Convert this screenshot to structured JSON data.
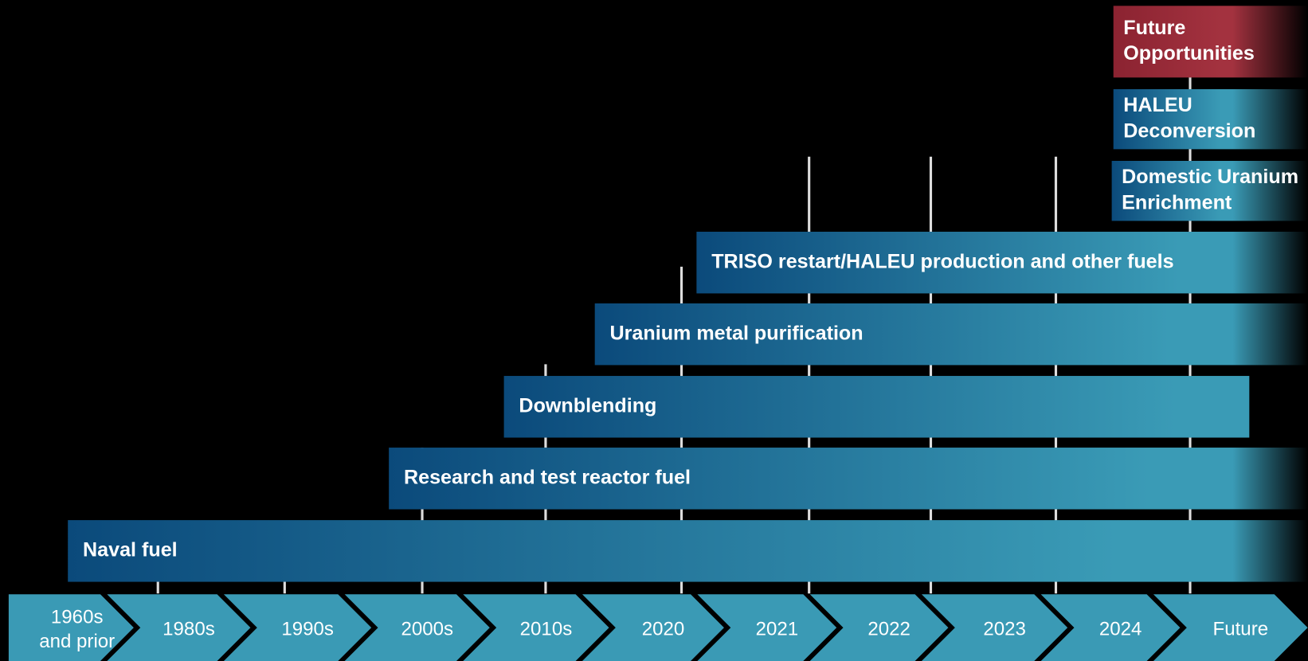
{
  "periods": [
    [
      "1960s",
      "and prior"
    ],
    [
      "1980s"
    ],
    [
      "1990s"
    ],
    [
      "2000s"
    ],
    [
      "2010s"
    ],
    [
      "2020"
    ],
    [
      "2021"
    ],
    [
      "2022"
    ],
    [
      "2023"
    ],
    [
      "2024"
    ],
    [
      "Future"
    ]
  ],
  "bars": [
    {
      "lines": [
        "Naval fuel"
      ]
    },
    {
      "lines": [
        "Research and test reactor fuel"
      ]
    },
    {
      "lines": [
        "Downblending"
      ]
    },
    {
      "lines": [
        "Uranium metal purification"
      ]
    },
    {
      "lines": [
        "TRISO restart/HALEU production and other fuels"
      ]
    },
    {
      "lines": [
        "Domestic Uranium",
        "Enrichment"
      ]
    },
    {
      "lines": [
        "HALEU",
        "Deconversion"
      ]
    },
    {
      "lines": [
        "Future",
        "Opportunities"
      ]
    }
  ]
}
